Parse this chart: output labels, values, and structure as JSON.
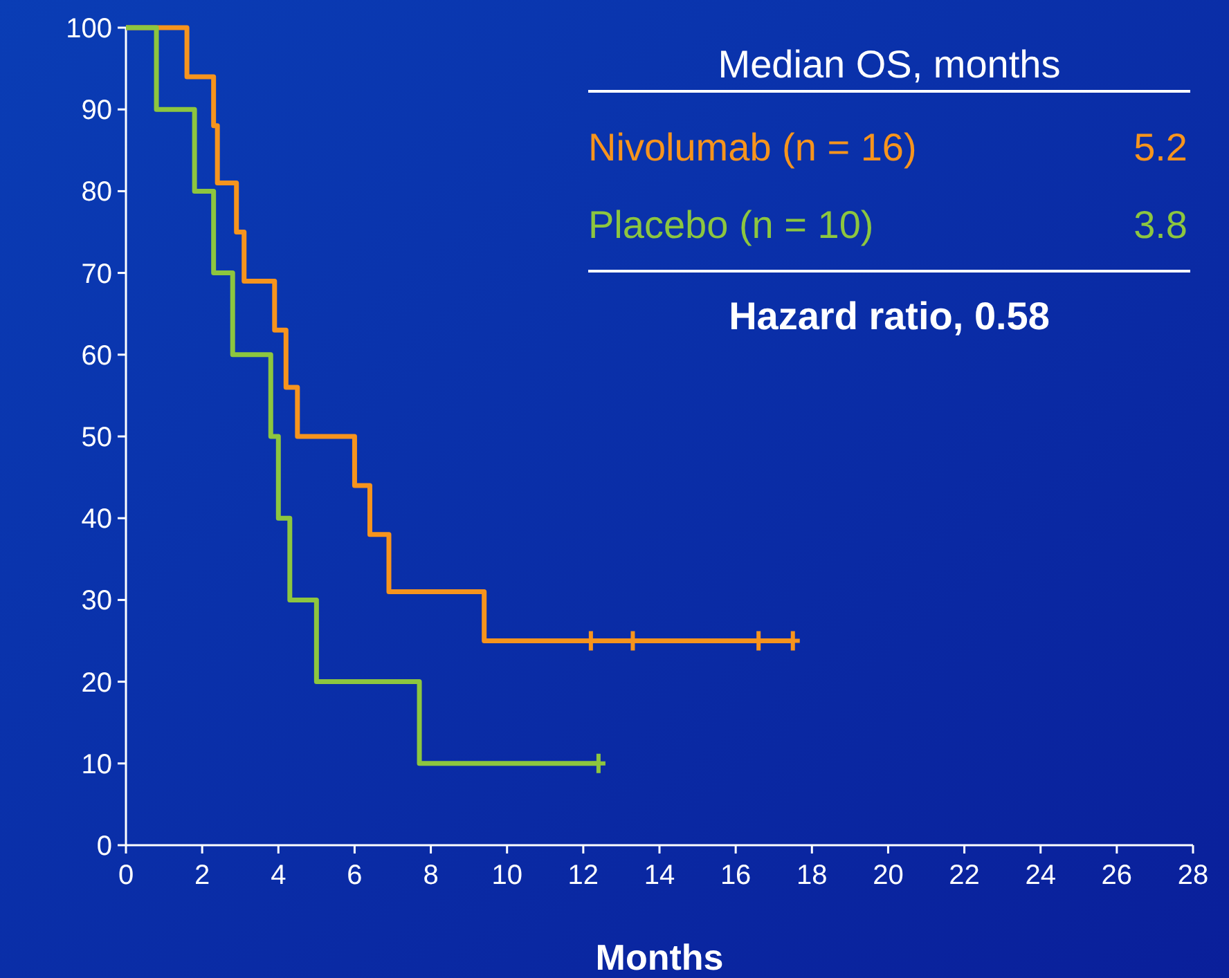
{
  "chart_data": {
    "type": "step",
    "xlabel": "Months",
    "xlim": [
      0,
      28
    ],
    "xticks": [
      0,
      2,
      4,
      6,
      8,
      10,
      12,
      14,
      16,
      18,
      20,
      22,
      24,
      26,
      28
    ],
    "ylim": [
      0,
      100
    ],
    "yticks": [
      0,
      10,
      20,
      30,
      40,
      50,
      60,
      70,
      80,
      90,
      100
    ],
    "grid": false,
    "legend": "top right",
    "series": [
      {
        "name": "Nivolumab (n = 16)",
        "color": "#f7941d",
        "x": [
          0,
          1.6,
          2.3,
          2.4,
          2.9,
          3.1,
          3.9,
          4.2,
          4.5,
          6.0,
          6.4,
          6.9,
          9.4,
          17.5
        ],
        "values": [
          100,
          94,
          88,
          81,
          75,
          69,
          63,
          56,
          50,
          44,
          38,
          31,
          25,
          25
        ]
      },
      {
        "name": "Placebo (n = 10)",
        "color": "#8dc63f",
        "x": [
          0,
          0.8,
          1.8,
          2.3,
          2.8,
          3.8,
          4.0,
          4.3,
          5.0,
          7.7,
          12.4
        ],
        "values": [
          100,
          90,
          80,
          70,
          60,
          50,
          40,
          30,
          20,
          10,
          10
        ]
      },
      {
        "type": "scatter",
        "color": "#f7941d",
        "marker": "cross",
        "x": [
          12.2,
          13.3,
          16.6,
          17.5
        ],
        "values": [
          25,
          25,
          25,
          25
        ]
      },
      {
        "type": "scatter",
        "color": "#8dc63f",
        "marker": "cross",
        "x": [
          12.4
        ],
        "values": [
          10
        ]
      }
    ],
    "annotations": [
      "Median OS, months",
      "5.2",
      "3.8",
      "Hazard ratio, 0.58"
    ]
  }
}
